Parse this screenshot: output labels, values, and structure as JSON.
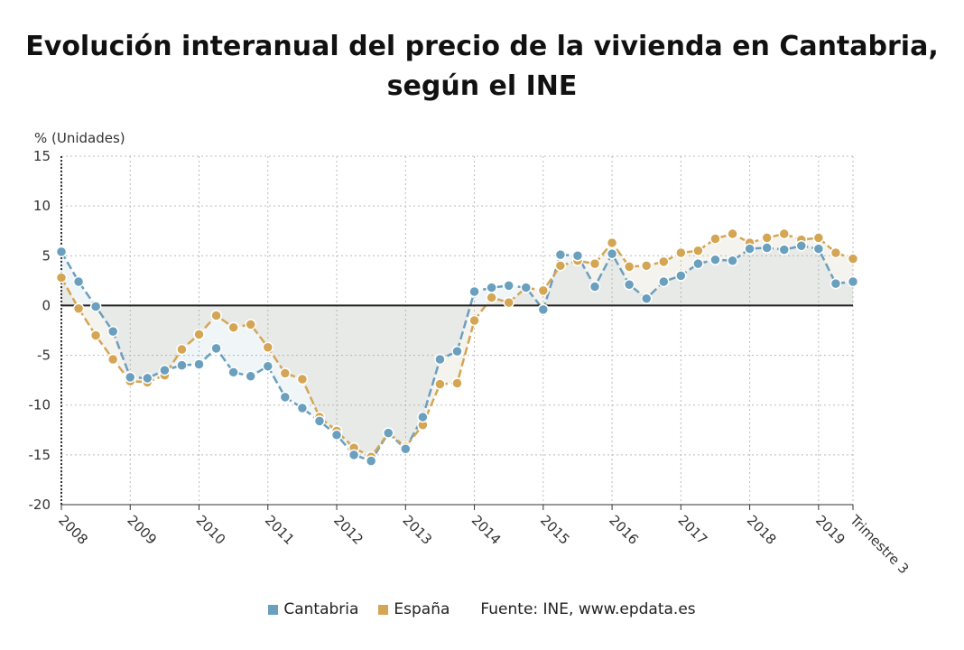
{
  "chart_data": {
    "type": "line",
    "title": "Evolución interanual del precio de la vivienda en Cantabria, según el INE",
    "ylabel": "% (Unidades)",
    "xlabel": "",
    "ylim": [
      -20,
      15
    ],
    "yticks": [
      15,
      10,
      5,
      0,
      -5,
      -10,
      -15,
      -20
    ],
    "xtick_labels": [
      "2008",
      "2009",
      "2010",
      "2011",
      "2012",
      "2013",
      "2014",
      "2015",
      "2016",
      "2017",
      "2018",
      "2019",
      "Trimestre 3"
    ],
    "x": [
      "2008T1",
      "2008T2",
      "2008T3",
      "2008T4",
      "2009T1",
      "2009T2",
      "2009T3",
      "2009T4",
      "2010T1",
      "2010T2",
      "2010T3",
      "2010T4",
      "2011T1",
      "2011T2",
      "2011T3",
      "2011T4",
      "2012T1",
      "2012T2",
      "2012T3",
      "2012T4",
      "2013T1",
      "2013T2",
      "2013T3",
      "2013T4",
      "2014T1",
      "2014T2",
      "2014T3",
      "2014T4",
      "2015T1",
      "2015T2",
      "2015T3",
      "2015T4",
      "2016T1",
      "2016T2",
      "2016T3",
      "2016T4",
      "2017T1",
      "2017T2",
      "2017T3",
      "2017T4",
      "2018T1",
      "2018T2",
      "2018T3",
      "2018T4",
      "2019T1",
      "2019T2",
      "2019T3"
    ],
    "grid": true,
    "legend_position": "bottom",
    "series": [
      {
        "name": "Cantabria",
        "color": "#6a9fbd",
        "values": [
          5.4,
          2.4,
          -0.1,
          -2.6,
          -7.2,
          -7.3,
          -6.5,
          -6.0,
          -5.9,
          -4.3,
          -6.7,
          -7.1,
          -6.1,
          -9.2,
          -10.3,
          -11.6,
          -13.0,
          -15.0,
          -15.6,
          -12.8,
          -14.4,
          -11.2,
          -5.4,
          -4.6,
          1.4,
          1.8,
          2.0,
          1.8,
          -0.4,
          5.1,
          5.0,
          1.9,
          5.2,
          2.1,
          0.7,
          2.4,
          3.0,
          4.2,
          4.6,
          4.5,
          5.7,
          5.8,
          5.6,
          6.0,
          5.7,
          2.2,
          2.4
        ]
      },
      {
        "name": "España",
        "color": "#d4a654",
        "values": [
          2.8,
          -0.3,
          -3.0,
          -5.4,
          -7.6,
          -7.7,
          -7.0,
          -4.4,
          -2.9,
          -1.0,
          -2.2,
          -1.9,
          -4.2,
          -6.8,
          -7.4,
          -11.2,
          -12.6,
          -14.3,
          -15.2,
          -12.8,
          -14.2,
          -12.0,
          -7.9,
          -7.8,
          -1.5,
          0.8,
          0.3,
          1.8,
          1.5,
          4.0,
          4.5,
          4.2,
          6.3,
          3.9,
          4.0,
          4.4,
          5.3,
          5.5,
          6.7,
          7.2,
          6.3,
          6.8,
          7.2,
          6.6,
          6.8,
          5.3,
          4.7
        ]
      }
    ],
    "source": "Fuente: INE, www.epdata.es"
  }
}
